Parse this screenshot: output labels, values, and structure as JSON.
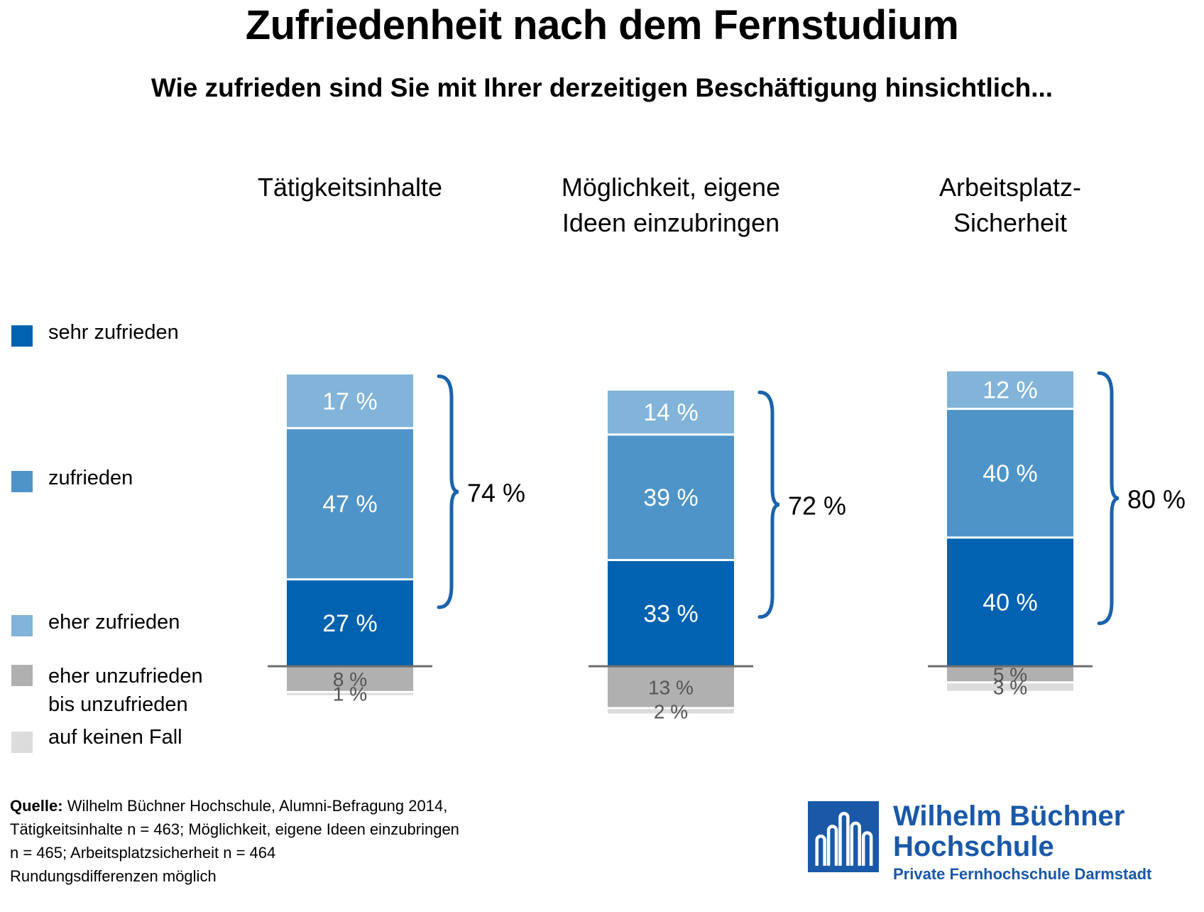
{
  "title": "Zufriedenheit nach dem Fernstudium",
  "subtitle": "Wie zufrieden sind Sie mit Ihrer derzeitigen Beschäftigung hinsichtlich...",
  "legend": [
    {
      "label": "sehr zufrieden",
      "color": "#0062b0"
    },
    {
      "label": "zufrieden",
      "color": "#4f94c8"
    },
    {
      "label": "eher zufrieden",
      "color": "#82b3d8"
    },
    {
      "label_line1": "eher unzufrieden",
      "label_line2": "bis unzufrieden",
      "color": "#b0b0b0"
    },
    {
      "label": "auf keinen Fall",
      "color": "#dcdcdc"
    }
  ],
  "chart_data": {
    "type": "bar",
    "stacked": true,
    "unit": "%",
    "categories": [
      [
        "Tätigkeitsinhalte"
      ],
      [
        "Möglichkeit, eigene",
        "Ideen einzubringen"
      ],
      [
        "Arbeitsplatz-",
        "Sicherheit"
      ]
    ],
    "positive_series": [
      {
        "name": "sehr zufrieden",
        "color": "#0062b0",
        "values": [
          27,
          33,
          40
        ]
      },
      {
        "name": "zufrieden",
        "color": "#4f94c8",
        "values": [
          47,
          39,
          40
        ]
      },
      {
        "name": "eher zufrieden",
        "color": "#82b3d8",
        "values": [
          17,
          14,
          12
        ]
      }
    ],
    "negative_series": [
      {
        "name": "eher unzufrieden bis unzufrieden",
        "color": "#b0b0b0",
        "values": [
          8,
          13,
          5
        ]
      },
      {
        "name": "auf keinen Fall",
        "color": "#dcdcdc",
        "values": [
          1,
          2,
          3
        ]
      }
    ],
    "totals": [
      74,
      72,
      80
    ],
    "value_labels": {
      "positive": [
        [
          "27 %",
          "47 %",
          "17 %"
        ],
        [
          "33 %",
          "39 %",
          "14 %"
        ],
        [
          "40 %",
          "40 %",
          "12 %"
        ]
      ],
      "negative": [
        [
          "8 %",
          "1 %"
        ],
        [
          "13 %",
          "2 %"
        ],
        [
          "5 %",
          "3 %"
        ]
      ],
      "totals": [
        "74 %",
        "72 %",
        "80 %"
      ]
    },
    "bracket_color": "#1a63ad",
    "axis_color": "#6e6e6e"
  },
  "source": {
    "label": "Quelle:",
    "line1": " Wilhelm Büchner Hochschule, Alumni-Befragung 2014,",
    "line2": "Tätigkeitsinhalte n = 463; Möglichkeit, eigene Ideen einzubringen",
    "line3": "n = 465; Arbeitsplatzsicherheit n = 464",
    "line4": "Rundungsdifferenzen möglich"
  },
  "logo": {
    "line1": "Wilhelm Büchner",
    "line2": "Hochschule",
    "line3": "Private Fernhochschule Darmstadt",
    "color": "#1a58a8"
  }
}
